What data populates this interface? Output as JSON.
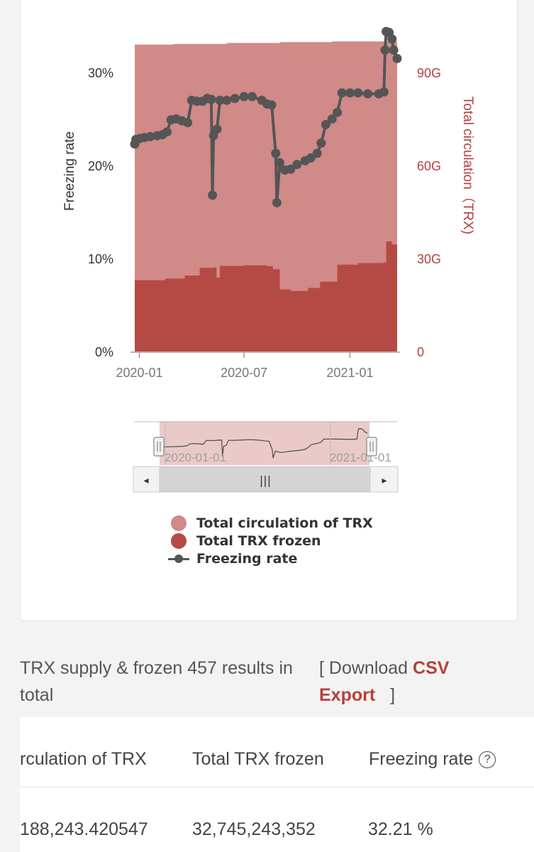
{
  "chart_data": {
    "type": "area",
    "x_ticks": [
      "2020-01",
      "2020-07",
      "2021-01"
    ],
    "y_left": {
      "label": "Freezing rate",
      "ticks": [
        "0%",
        "10%",
        "20%",
        "30%"
      ],
      "range": [
        0,
        30
      ]
    },
    "y_right": {
      "label": "Total circulation（TRX)",
      "ticks": [
        "0",
        "30G",
        "60G",
        "90G"
      ],
      "range": [
        0,
        90
      ]
    },
    "x_range": [
      "2019-12-24",
      "2021-03-24"
    ],
    "grid": false,
    "legend_position": "bottom",
    "series": [
      {
        "name": "Total circulation of TRX",
        "type": "area",
        "axis": "right",
        "color": "#d08a88",
        "points": [
          [
            "2019-12-24",
            99.0
          ],
          [
            "2020-03-01",
            99.2
          ],
          [
            "2020-06-01",
            99.5
          ],
          [
            "2020-09-01",
            99.8
          ],
          [
            "2020-12-01",
            100.0
          ],
          [
            "2021-03-24",
            100.3
          ]
        ]
      },
      {
        "name": "Total TRX frozen",
        "type": "area",
        "axis": "right",
        "color": "#b54a44",
        "points": [
          [
            "2019-12-24",
            23.0
          ],
          [
            "2020-01-20",
            23.0
          ],
          [
            "2020-02-15",
            23.5
          ],
          [
            "2020-03-20",
            24.5
          ],
          [
            "2020-04-15",
            27.0
          ],
          [
            "2020-05-12",
            27.2
          ],
          [
            "2020-05-14",
            23.8
          ],
          [
            "2020-05-20",
            27.6
          ],
          [
            "2020-07-01",
            27.8
          ],
          [
            "2020-08-10",
            27.5
          ],
          [
            "2020-08-20",
            26.5
          ],
          [
            "2020-09-01",
            20.0
          ],
          [
            "2020-09-20",
            19.5
          ],
          [
            "2020-10-20",
            20.5
          ],
          [
            "2020-11-10",
            22.5
          ],
          [
            "2020-12-10",
            28.0
          ],
          [
            "2021-01-15",
            28.5
          ],
          [
            "2021-02-28",
            28.7
          ],
          [
            "2021-03-05",
            35.5
          ],
          [
            "2021-03-15",
            34.5
          ],
          [
            "2021-03-24",
            32.7
          ]
        ]
      },
      {
        "name": "Freezing rate",
        "type": "line",
        "axis": "left",
        "color": "#555555",
        "points": [
          [
            "2019-12-24",
            22.3
          ],
          [
            "2019-12-26",
            22.8
          ],
          [
            "2020-01-02",
            22.9
          ],
          [
            "2020-01-10",
            23.0
          ],
          [
            "2020-01-20",
            23.1
          ],
          [
            "2020-02-01",
            23.2
          ],
          [
            "2020-02-10",
            23.3
          ],
          [
            "2020-02-18",
            23.6
          ],
          [
            "2020-02-25",
            24.9
          ],
          [
            "2020-03-05",
            25.0
          ],
          [
            "2020-03-15",
            24.8
          ],
          [
            "2020-03-25",
            24.6
          ],
          [
            "2020-04-01",
            27.0
          ],
          [
            "2020-04-10",
            26.9
          ],
          [
            "2020-04-20",
            26.9
          ],
          [
            "2020-04-28",
            27.2
          ],
          [
            "2020-05-05",
            27.1
          ],
          [
            "2020-05-07",
            16.8
          ],
          [
            "2020-05-09",
            23.2
          ],
          [
            "2020-05-15",
            23.9
          ],
          [
            "2020-05-20",
            27.0
          ],
          [
            "2020-06-01",
            27.0
          ],
          [
            "2020-06-15",
            27.2
          ],
          [
            "2020-07-01",
            27.4
          ],
          [
            "2020-07-15",
            27.4
          ],
          [
            "2020-08-01",
            27.0
          ],
          [
            "2020-08-10",
            26.6
          ],
          [
            "2020-08-18",
            26.5
          ],
          [
            "2020-08-25",
            21.3
          ],
          [
            "2020-08-27",
            16.0
          ],
          [
            "2020-09-01",
            20.3
          ],
          [
            "2020-09-10",
            19.5
          ],
          [
            "2020-09-20",
            19.6
          ],
          [
            "2020-10-01",
            20.1
          ],
          [
            "2020-10-15",
            20.5
          ],
          [
            "2020-10-25",
            20.8
          ],
          [
            "2020-11-05",
            21.3
          ],
          [
            "2020-11-12",
            22.4
          ],
          [
            "2020-11-20",
            24.4
          ],
          [
            "2020-12-01",
            25.0
          ],
          [
            "2020-12-10",
            25.7
          ],
          [
            "2020-12-18",
            27.8
          ],
          [
            "2021-01-01",
            27.8
          ],
          [
            "2021-01-15",
            27.8
          ],
          [
            "2021-02-01",
            27.7
          ],
          [
            "2021-02-20",
            27.7
          ],
          [
            "2021-03-01",
            27.9
          ],
          [
            "2021-03-03",
            32.4
          ],
          [
            "2021-03-05",
            34.4
          ],
          [
            "2021-03-10",
            34.3
          ],
          [
            "2021-03-15",
            33.6
          ],
          [
            "2021-03-18",
            32.4
          ],
          [
            "2021-03-24",
            31.5
          ]
        ]
      }
    ]
  },
  "zoom": {
    "date_label_left": "2020-01-01",
    "date_label_right": "2021-01-01",
    "handle_glyph": "||",
    "scroll_left_arrow": "◂",
    "scroll_right_arrow": "▸",
    "scroll_grip": "|||"
  },
  "legend": {
    "items": [
      {
        "label": "Total circulation of TRX",
        "color": "#d08a88"
      },
      {
        "label": "Total TRX frozen",
        "color": "#b54a44"
      },
      {
        "label": "Freezing rate",
        "color": "#555555"
      }
    ]
  },
  "summary": {
    "text": "TRX supply & frozen 457 results in total",
    "bracket_open": "[",
    "download": "Download",
    "csv": "CSV",
    "export": "Export",
    "bracket_close": "]"
  },
  "table": {
    "headers": [
      "rculation of TRX",
      "Total TRX frozen",
      "Freezing rate"
    ],
    "help_icon_glyph": "?",
    "rows": [
      [
        "188,243.420547",
        "32,745,243,352",
        "32.21 %"
      ]
    ]
  },
  "colors": {
    "accent": "#b6403b",
    "circulation": "#d08a88",
    "frozen": "#b54a44",
    "rate_line": "#555555"
  }
}
